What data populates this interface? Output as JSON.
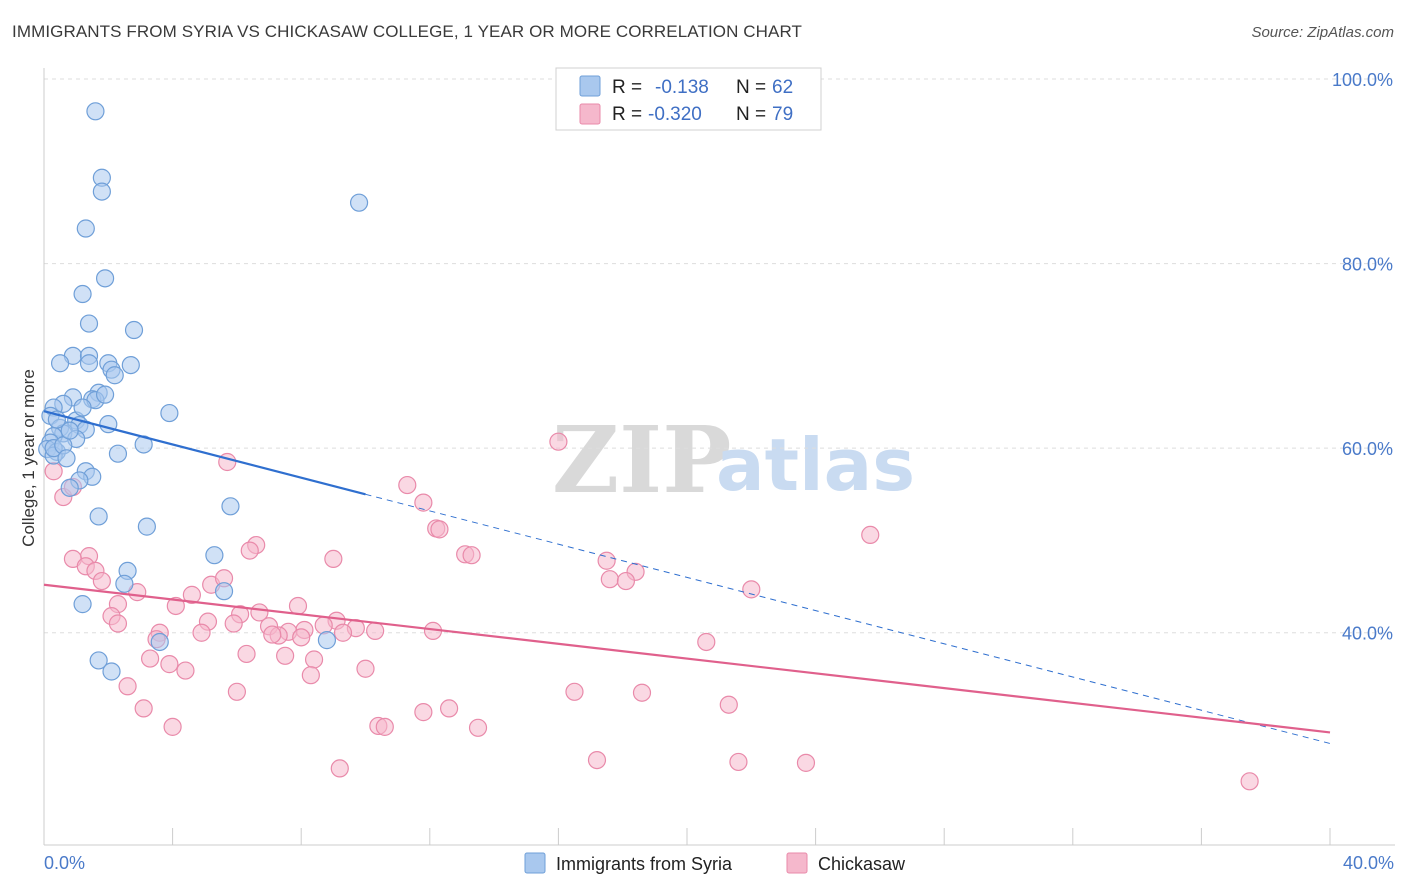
{
  "title": "IMMIGRANTS FROM SYRIA VS CHICKASAW COLLEGE, 1 YEAR OR MORE CORRELATION CHART",
  "source": "Source: ZipAtlas.com",
  "watermark": {
    "zip": "ZIP",
    "atlas": "atlas"
  },
  "colors": {
    "blue_fill": "#a9c8ee",
    "blue_stroke": "#6f9fd8",
    "blue_line": "#2f6fcf",
    "pink_fill": "#f5b8cc",
    "pink_stroke": "#e98aaa",
    "pink_line": "#e0608c",
    "tick_text": "#4a7ac9",
    "grid": "#dddddd"
  },
  "legend": {
    "rows": [
      {
        "r_label": "R =",
        "r_value": "-0.138",
        "n_label": "N =",
        "n_value": "62"
      },
      {
        "r_label": "R =",
        "r_value": "-0.320",
        "n_label": "N =",
        "n_value": "79"
      }
    ]
  },
  "bottom_legend": [
    "Immigrants from Syria",
    "Chickasaw"
  ],
  "chart_data": {
    "type": "scatter",
    "title": "IMMIGRANTS FROM SYRIA VS CHICKASAW COLLEGE, 1 YEAR OR MORE CORRELATION CHART",
    "xlabel": "",
    "ylabel": "College, 1 year or more",
    "xlim": [
      0,
      40
    ],
    "ylim": [
      17,
      100
    ],
    "x_tick_labels": [
      "0.0%",
      "40.0%"
    ],
    "y_ticks": [
      40,
      60,
      80,
      100
    ],
    "y_tick_labels": [
      "40.0%",
      "60.0%",
      "80.0%",
      "100.0%"
    ],
    "series": [
      {
        "name": "Immigrants from Syria",
        "r": -0.138,
        "n": 62,
        "trend": {
          "solid_x": [
            0,
            10
          ],
          "solid_y": [
            64.0,
            55.0
          ],
          "dashed_x": [
            10,
            40
          ],
          "dashed_y": [
            55.0,
            28.0
          ]
        },
        "points": [
          [
            1.6,
            96.5
          ],
          [
            1.8,
            89.3
          ],
          [
            1.8,
            87.8
          ],
          [
            1.3,
            83.8
          ],
          [
            9.8,
            86.6
          ],
          [
            1.9,
            78.4
          ],
          [
            1.2,
            76.7
          ],
          [
            1.4,
            73.5
          ],
          [
            2.8,
            72.8
          ],
          [
            0.9,
            70.0
          ],
          [
            1.4,
            70.0
          ],
          [
            0.5,
            69.2
          ],
          [
            1.4,
            69.2
          ],
          [
            2.0,
            69.2
          ],
          [
            2.7,
            69.0
          ],
          [
            2.1,
            68.5
          ],
          [
            2.2,
            67.9
          ],
          [
            1.7,
            66.0
          ],
          [
            0.9,
            65.5
          ],
          [
            1.5,
            65.3
          ],
          [
            1.6,
            65.2
          ],
          [
            0.6,
            64.8
          ],
          [
            0.3,
            64.4
          ],
          [
            3.9,
            63.8
          ],
          [
            0.2,
            63.5
          ],
          [
            1.0,
            63.0
          ],
          [
            2.0,
            62.6
          ],
          [
            1.1,
            62.5
          ],
          [
            0.5,
            62.2
          ],
          [
            1.3,
            62.0
          ],
          [
            0.6,
            61.6
          ],
          [
            0.3,
            61.3
          ],
          [
            1.0,
            61.0
          ],
          [
            0.2,
            60.6
          ],
          [
            3.1,
            60.4
          ],
          [
            0.1,
            59.9
          ],
          [
            0.4,
            59.6
          ],
          [
            2.3,
            59.4
          ],
          [
            0.3,
            59.2
          ],
          [
            1.3,
            57.5
          ],
          [
            1.5,
            56.9
          ],
          [
            1.1,
            56.5
          ],
          [
            0.8,
            55.7
          ],
          [
            5.8,
            53.7
          ],
          [
            1.7,
            52.6
          ],
          [
            3.2,
            51.5
          ],
          [
            5.3,
            48.4
          ],
          [
            2.6,
            46.7
          ],
          [
            2.5,
            45.3
          ],
          [
            5.6,
            44.5
          ],
          [
            1.2,
            43.1
          ],
          [
            3.6,
            39.0
          ],
          [
            8.8,
            39.2
          ],
          [
            1.7,
            37.0
          ],
          [
            2.1,
            35.8
          ],
          [
            0.3,
            60.0
          ],
          [
            0.6,
            60.3
          ],
          [
            0.8,
            61.9
          ],
          [
            1.9,
            65.8
          ],
          [
            1.2,
            64.4
          ],
          [
            0.4,
            63.1
          ],
          [
            0.7,
            58.9
          ]
        ]
      },
      {
        "name": "Chickasaw",
        "r": -0.32,
        "n": 79,
        "trend": {
          "x": [
            0,
            40
          ],
          "y": [
            45.2,
            29.2
          ]
        },
        "points": [
          [
            0.3,
            57.5
          ],
          [
            0.6,
            54.7
          ],
          [
            16.0,
            60.7
          ],
          [
            5.7,
            58.5
          ],
          [
            11.3,
            56.0
          ],
          [
            11.8,
            54.1
          ],
          [
            12.2,
            51.3
          ],
          [
            12.3,
            51.2
          ],
          [
            25.7,
            50.6
          ],
          [
            6.6,
            49.5
          ],
          [
            6.4,
            48.9
          ],
          [
            1.4,
            48.3
          ],
          [
            0.9,
            48.0
          ],
          [
            17.5,
            47.8
          ],
          [
            13.1,
            48.5
          ],
          [
            13.3,
            48.4
          ],
          [
            18.4,
            46.6
          ],
          [
            1.3,
            47.2
          ],
          [
            1.6,
            46.7
          ],
          [
            17.6,
            45.8
          ],
          [
            18.1,
            45.6
          ],
          [
            1.8,
            45.6
          ],
          [
            9.0,
            48.0
          ],
          [
            5.2,
            45.2
          ],
          [
            2.9,
            44.4
          ],
          [
            22.0,
            44.7
          ],
          [
            4.6,
            44.1
          ],
          [
            4.1,
            42.9
          ],
          [
            2.3,
            43.1
          ],
          [
            6.1,
            42.0
          ],
          [
            2.1,
            41.8
          ],
          [
            5.1,
            41.2
          ],
          [
            9.1,
            41.3
          ],
          [
            2.3,
            41.0
          ],
          [
            5.9,
            41.0
          ],
          [
            7.0,
            40.7
          ],
          [
            8.7,
            40.8
          ],
          [
            9.7,
            40.5
          ],
          [
            8.1,
            40.3
          ],
          [
            12.1,
            40.2
          ],
          [
            7.6,
            40.1
          ],
          [
            9.3,
            40.0
          ],
          [
            3.6,
            40.0
          ],
          [
            10.3,
            40.2
          ],
          [
            7.3,
            39.7
          ],
          [
            8.0,
            39.5
          ],
          [
            3.5,
            39.3
          ],
          [
            4.9,
            40.0
          ],
          [
            7.1,
            39.8
          ],
          [
            20.6,
            39.0
          ],
          [
            6.3,
            37.7
          ],
          [
            7.5,
            37.5
          ],
          [
            8.4,
            37.1
          ],
          [
            3.3,
            37.2
          ],
          [
            3.9,
            36.6
          ],
          [
            4.4,
            35.9
          ],
          [
            10.0,
            36.1
          ],
          [
            8.3,
            35.4
          ],
          [
            2.6,
            34.2
          ],
          [
            6.0,
            33.6
          ],
          [
            16.5,
            33.6
          ],
          [
            18.6,
            33.5
          ],
          [
            21.3,
            32.2
          ],
          [
            11.8,
            31.4
          ],
          [
            12.6,
            31.8
          ],
          [
            3.1,
            31.8
          ],
          [
            10.4,
            29.9
          ],
          [
            10.6,
            29.8
          ],
          [
            13.5,
            29.7
          ],
          [
            4.0,
            29.8
          ],
          [
            17.2,
            26.2
          ],
          [
            21.6,
            26.0
          ],
          [
            23.7,
            25.9
          ],
          [
            9.2,
            25.3
          ],
          [
            37.5,
            23.9
          ],
          [
            0.9,
            55.8
          ],
          [
            6.7,
            42.2
          ],
          [
            5.6,
            45.9
          ],
          [
            7.9,
            42.9
          ]
        ]
      }
    ]
  }
}
